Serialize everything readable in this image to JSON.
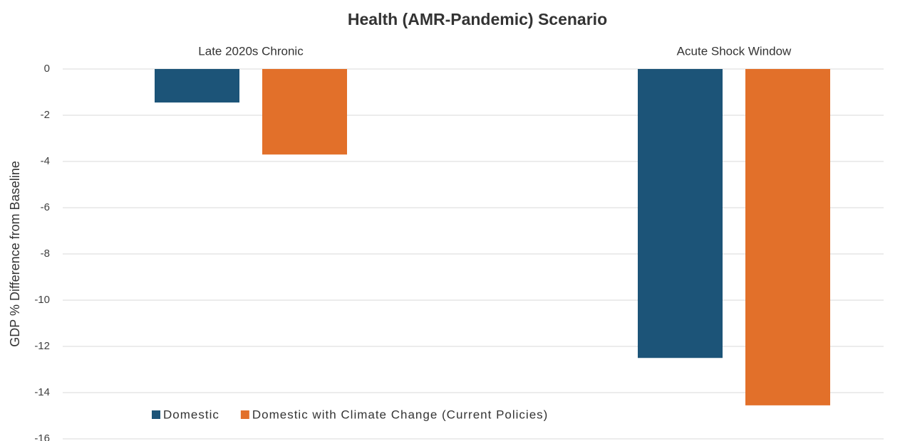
{
  "chart_data": {
    "type": "bar",
    "title": "Health (AMR-Pandemic) Scenario",
    "y_label": "GDP % Difference from Baseline",
    "categories": [
      "Late 2020s Chronic",
      "Acute Shock Window"
    ],
    "series": [
      {
        "name": "Domestic",
        "color": "#1c5478",
        "values": [
          -1.45,
          -12.5
        ]
      },
      {
        "name": "Domestic with Climate Change (Current Policies)",
        "color": "#e2702a",
        "values": [
          -3.7,
          -14.55
        ]
      }
    ],
    "ylim": [
      -16,
      0
    ],
    "yticks": [
      0,
      -2,
      -4,
      -6,
      -8,
      -10,
      -12,
      -14,
      -16
    ],
    "grid": true,
    "legend": "bottom"
  }
}
